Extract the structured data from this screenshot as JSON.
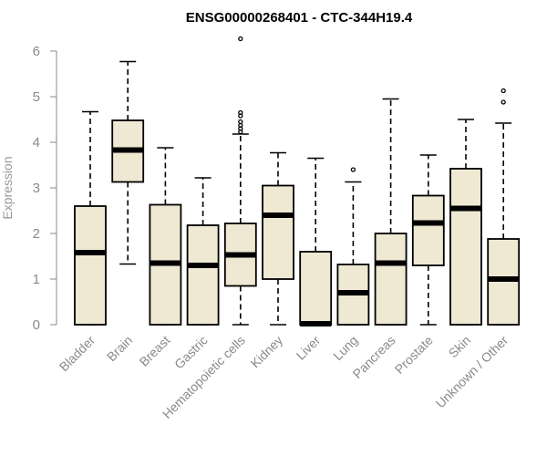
{
  "chart_data": {
    "type": "boxplot",
    "title": "ENSG00000268401 - CTC-344H19.4",
    "ylabel": "Expression",
    "xlabel": "",
    "ylim": [
      0,
      6
    ],
    "yticks": [
      0,
      1,
      2,
      3,
      4,
      5,
      6
    ],
    "grid": false,
    "box_fill": "#efe8d2",
    "box_stroke": "#000000",
    "categories": [
      "Bladder",
      "Brain",
      "Breast",
      "Gastric",
      "Hematopoietic cells",
      "Kidney",
      "Liver",
      "Lung",
      "Pancreas",
      "Prostate",
      "Skin",
      "Unknown / Other"
    ],
    "boxes": [
      {
        "whisker_low": 0,
        "q1": 0,
        "median": 1.58,
        "q3": 2.6,
        "whisker_high": 4.67,
        "outliers": []
      },
      {
        "whisker_low": 1.33,
        "q1": 3.13,
        "median": 3.83,
        "q3": 4.48,
        "whisker_high": 5.77,
        "outliers": []
      },
      {
        "whisker_low": 0,
        "q1": 0,
        "median": 1.35,
        "q3": 2.63,
        "whisker_high": 3.88,
        "outliers": []
      },
      {
        "whisker_low": 0,
        "q1": 0,
        "median": 1.3,
        "q3": 2.18,
        "whisker_high": 3.22,
        "outliers": []
      },
      {
        "whisker_low": 0,
        "q1": 0.85,
        "median": 1.53,
        "q3": 2.22,
        "whisker_high": 4.18,
        "outliers": [
          4.23,
          4.3,
          4.37,
          4.45,
          4.58,
          4.65,
          6.27
        ]
      },
      {
        "whisker_low": 0,
        "q1": 1.0,
        "median": 2.4,
        "q3": 3.05,
        "whisker_high": 3.77,
        "outliers": []
      },
      {
        "whisker_low": 0,
        "q1": 0,
        "median": 0.02,
        "q3": 1.6,
        "whisker_high": 3.65,
        "outliers": []
      },
      {
        "whisker_low": 0,
        "q1": 0,
        "median": 0.7,
        "q3": 1.32,
        "whisker_high": 3.13,
        "outliers": [
          3.4
        ]
      },
      {
        "whisker_low": 0,
        "q1": 0,
        "median": 1.35,
        "q3": 2.0,
        "whisker_high": 4.95,
        "outliers": []
      },
      {
        "whisker_low": 0,
        "q1": 1.3,
        "median": 2.23,
        "q3": 2.83,
        "whisker_high": 3.72,
        "outliers": []
      },
      {
        "whisker_low": 0,
        "q1": 0,
        "median": 2.55,
        "q3": 3.42,
        "whisker_high": 4.5,
        "outliers": []
      },
      {
        "whisker_low": 0,
        "q1": 0,
        "median": 1.0,
        "q3": 1.88,
        "whisker_high": 4.42,
        "outliers": [
          4.88,
          5.13
        ]
      }
    ]
  }
}
